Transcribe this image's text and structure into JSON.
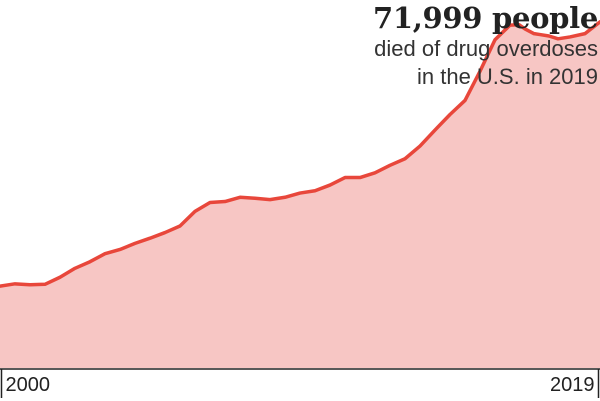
{
  "headline": {
    "value": "71,999 people",
    "line1": "died of drug overdoses",
    "line2": "in the U.S. in 2019"
  },
  "chart_data": {
    "type": "area",
    "title": "",
    "xlabel": "",
    "ylabel": "",
    "xlim": [
      2000.0,
      2020.0
    ],
    "ylim": [
      0,
      74000
    ],
    "x_tick_labels": [
      {
        "x": 2000.0,
        "label": "2000"
      },
      {
        "x": 2020.0,
        "label": "2019"
      }
    ],
    "grid": false,
    "series": [
      {
        "line_color": "#e8473b",
        "fill_color": "#f7c6c4",
        "x": [
          2000.0,
          2000.5,
          2001.0,
          2001.5,
          2002.0,
          2002.5,
          2003.0,
          2003.5,
          2004.0,
          2004.5,
          2005.0,
          2005.5,
          2006.0,
          2006.5,
          2007.0,
          2007.5,
          2008.0,
          2008.5,
          2009.0,
          2009.5,
          2010.0,
          2010.5,
          2011.0,
          2011.5,
          2012.0,
          2012.5,
          2013.0,
          2013.5,
          2014.0,
          2014.5,
          2015.0,
          2015.5,
          2016.0,
          2016.5,
          2017.0,
          2017.3,
          2017.5,
          2017.8,
          2018.0,
          2018.3,
          2018.6,
          2019.0,
          2019.5,
          2020.0
        ],
        "y": [
          17400,
          17900,
          17700,
          17800,
          19300,
          21200,
          22600,
          24300,
          25200,
          26500,
          27600,
          28800,
          30200,
          33300,
          35200,
          35400,
          36300,
          36100,
          35800,
          36300,
          37200,
          37700,
          38900,
          40500,
          40500,
          41500,
          43100,
          44500,
          47200,
          50600,
          53900,
          56900,
          63100,
          69800,
          72900,
          73000,
          72100,
          71100,
          70900,
          70600,
          70000,
          70400,
          71100,
          73600
        ]
      }
    ]
  }
}
